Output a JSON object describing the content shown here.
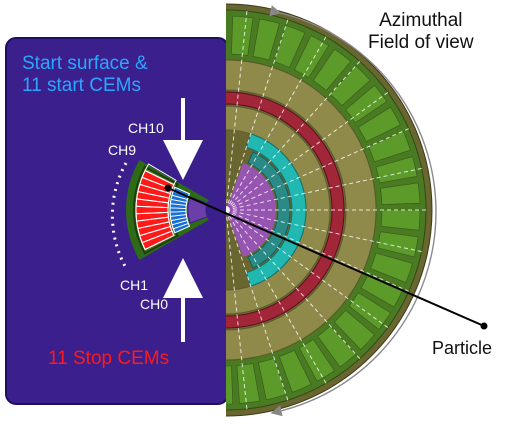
{
  "labels": {
    "start_surface_line1": "Start surface &",
    "start_surface_line2": "11 start CEMs",
    "stop_cems": "11 Stop CEMs",
    "azimuthal_line1": "Azimuthal",
    "azimuthal_line2": "Field of view",
    "particle": "Particle"
  },
  "channels": {
    "ch10": "CH10",
    "ch9": "CH9",
    "ch1": "CH1",
    "ch0": "CH0"
  },
  "colors": {
    "background_plate": "#3b1f8c",
    "stop_cem_red": "#ff1a1a",
    "start_cem_blue": "#1a6fd6",
    "detector_green": "#4a7a22",
    "detector_olive": "#8f8a4a",
    "ring_cyan": "#20b8b0",
    "ring_red": "#a02638",
    "fov_purple": "#9c52c8",
    "label_blue": "#2aa7ff",
    "label_red": "#ff1a1a"
  }
}
